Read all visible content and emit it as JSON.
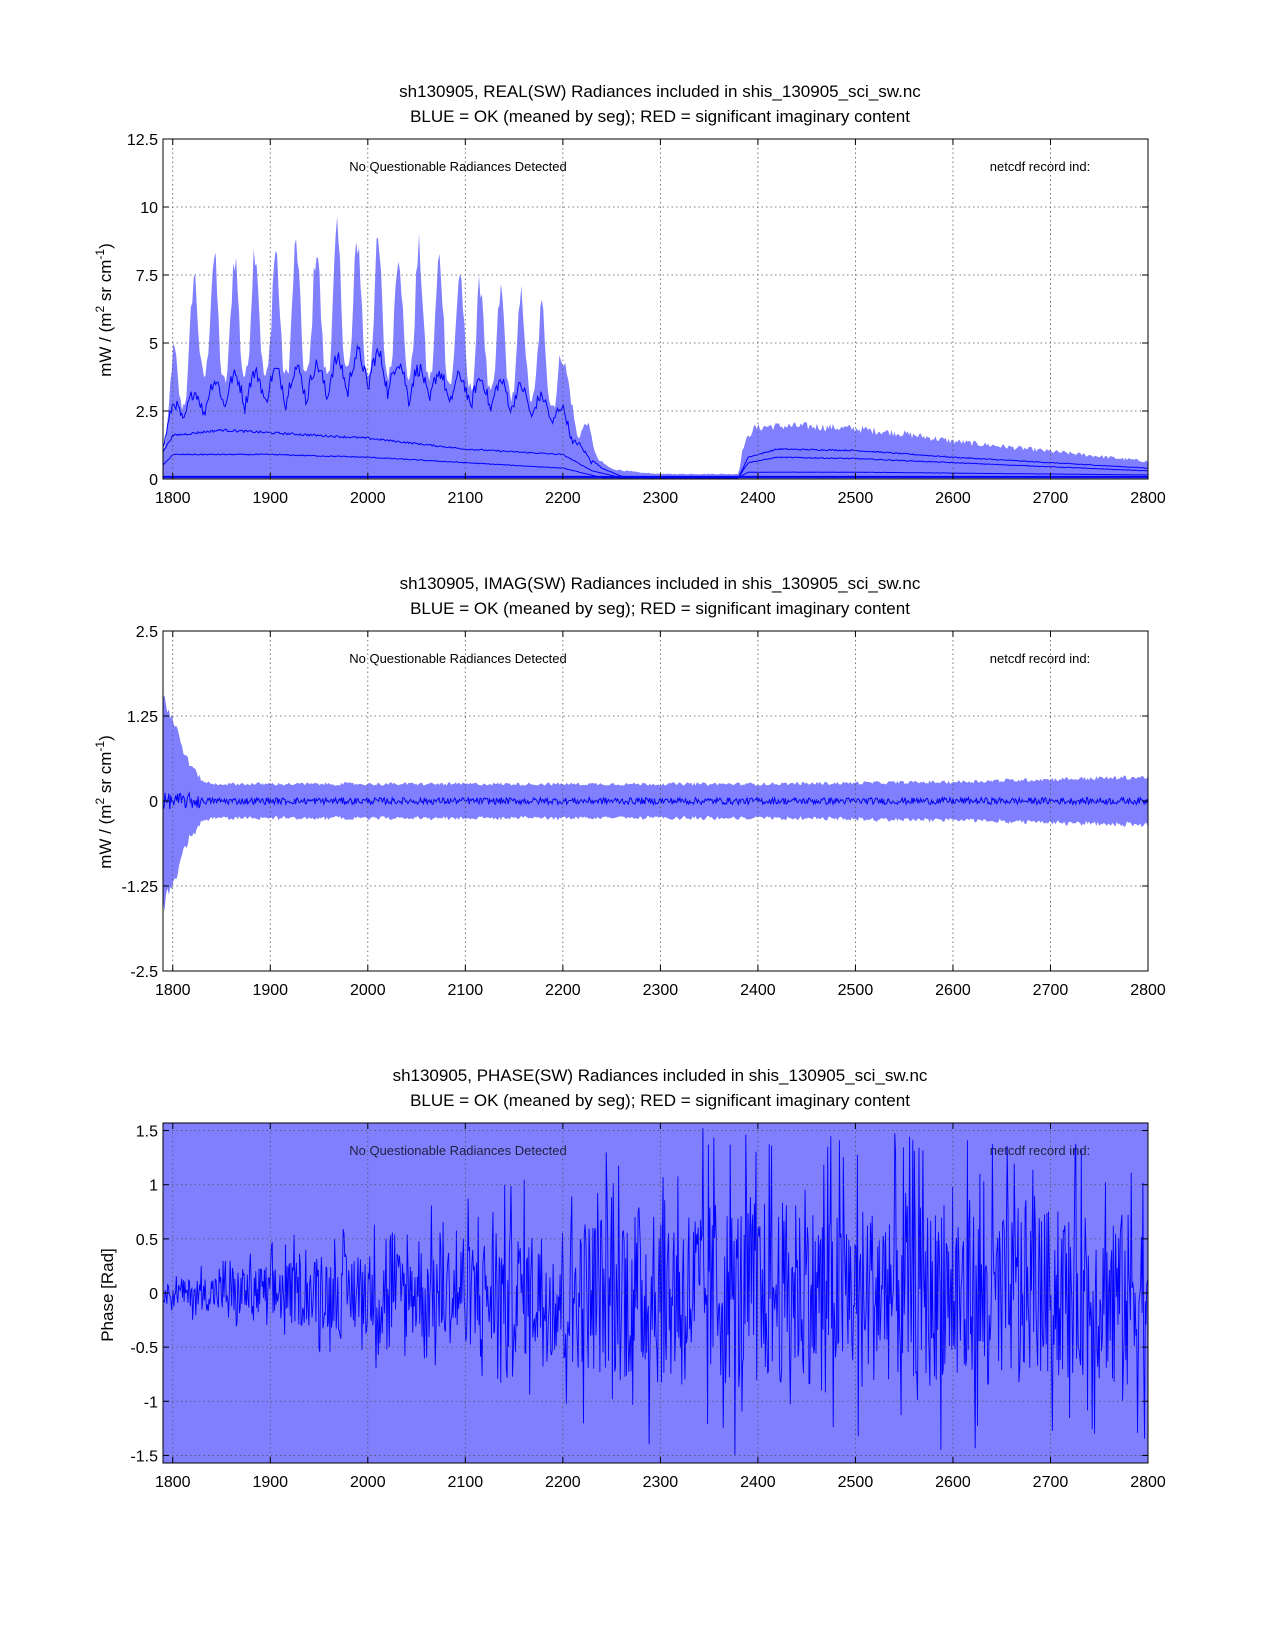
{
  "colors": {
    "envelope": "#8080ff",
    "trace": "#0000ff",
    "axis": "#000000",
    "background": "#ffffff"
  },
  "chart_data": [
    {
      "type": "line",
      "title": "sh130905, REAL(SW) Radiances included in shis_130905_sci_sw.nc",
      "subtitle": "BLUE = OK (meaned by seg); RED = significant imaginary content",
      "xlabel": "",
      "ylabel_parts": [
        "mW / (m",
        "2",
        " sr cm",
        "-1",
        ")"
      ],
      "xlim": [
        1790,
        2800
      ],
      "ylim": [
        0,
        12.5
      ],
      "xticks": [
        1800,
        1900,
        2000,
        2100,
        2200,
        2300,
        2400,
        2500,
        2600,
        2700,
        2800
      ],
      "yticks": [
        0,
        2.5,
        5,
        7.5,
        10,
        12.5
      ],
      "ytick_labels": [
        "0",
        "2.5",
        "5",
        "7.5",
        "10",
        "12.5"
      ],
      "grid": true,
      "annotation_left": "No Questionable Radiances Detected",
      "annotation_right": "netcdf record ind:",
      "series": [
        {
          "name": "envelope max",
          "x": [
            1790,
            1800,
            1830,
            1850,
            1880,
            1900,
            1930,
            1950,
            1975,
            2000,
            2030,
            2060,
            2100,
            2130,
            2160,
            2190,
            2205,
            2215,
            2225,
            2235,
            2250,
            2280,
            2300,
            2340,
            2380,
            2385,
            2395,
            2410,
            2450,
            2500,
            2550,
            2600,
            2650,
            2700,
            2750,
            2800
          ],
          "y": [
            2.5,
            5.0,
            9.2,
            8.5,
            9.3,
            9.0,
            9.3,
            9.2,
            9.8,
            9.3,
            9.2,
            9.0,
            8.1,
            7.5,
            7.2,
            6.5,
            4.0,
            1.6,
            2.3,
            0.8,
            0.4,
            0.25,
            0.2,
            0.2,
            0.2,
            1.3,
            2.0,
            2.1,
            2.1,
            2.0,
            1.8,
            1.5,
            1.3,
            1.1,
            0.9,
            0.7
          ]
        },
        {
          "name": "mean high",
          "x": [
            1790,
            1800,
            1850,
            1900,
            1950,
            2000,
            2050,
            2100,
            2150,
            2200,
            2220,
            2240,
            2260,
            2300,
            2380,
            2390,
            2420,
            2500,
            2600,
            2700,
            2800
          ],
          "y": [
            1.5,
            2.5,
            3.4,
            3.6,
            3.8,
            4.3,
            3.7,
            3.4,
            3.2,
            2.4,
            1.0,
            0.4,
            0.1,
            0.05,
            0.05,
            0.8,
            1.1,
            1.05,
            0.8,
            0.6,
            0.4
          ]
        },
        {
          "name": "mean mid",
          "x": [
            1790,
            1800,
            1850,
            1900,
            1950,
            2000,
            2100,
            2200,
            2230,
            2260,
            2380,
            2390,
            2420,
            2500,
            2600,
            2700,
            2800
          ],
          "y": [
            1.0,
            1.6,
            1.8,
            1.7,
            1.6,
            1.5,
            1.1,
            0.9,
            0.3,
            0.05,
            0.05,
            0.6,
            0.8,
            0.75,
            0.6,
            0.45,
            0.3
          ]
        },
        {
          "name": "mean low",
          "x": [
            1790,
            1800,
            1900,
            2000,
            2100,
            2200,
            2240,
            2380,
            2390,
            2500,
            2800
          ],
          "y": [
            0.5,
            0.9,
            0.9,
            0.8,
            0.6,
            0.4,
            0.05,
            0.05,
            0.25,
            0.25,
            0.15
          ]
        }
      ]
    },
    {
      "type": "line",
      "title": "sh130905, IMAG(SW) Radiances included in shis_130905_sci_sw.nc",
      "subtitle": "BLUE = OK (meaned by seg); RED = significant imaginary content",
      "xlabel": "",
      "ylabel_parts": [
        "mW / (m",
        "2",
        " sr cm",
        "-1",
        ")"
      ],
      "xlim": [
        1790,
        2800
      ],
      "ylim": [
        -2.5,
        2.5
      ],
      "xticks": [
        1800,
        1900,
        2000,
        2100,
        2200,
        2300,
        2400,
        2500,
        2600,
        2700,
        2800
      ],
      "yticks": [
        -2.5,
        -1.25,
        0,
        1.25,
        2.5
      ],
      "ytick_labels": [
        "-2.5",
        "-1.25",
        "0",
        "1.25",
        "2.5"
      ],
      "grid": true,
      "annotation_left": "No Questionable Radiances Detected",
      "annotation_right": "netcdf record ind:",
      "series": [
        {
          "name": "envelope",
          "x": [
            1790,
            1800,
            1815,
            1830,
            1840,
            1900,
            2000,
            2200,
            2400,
            2600,
            2700,
            2800
          ],
          "y": [
            1.55,
            1.2,
            0.6,
            0.3,
            0.25,
            0.25,
            0.25,
            0.25,
            0.25,
            0.28,
            0.32,
            0.35
          ]
        },
        {
          "name": "mean",
          "x": [
            1790,
            2800
          ],
          "y": [
            0.0,
            0.0
          ]
        }
      ]
    },
    {
      "type": "line",
      "title": "sh130905, PHASE(SW) Radiances included in shis_130905_sci_sw.nc",
      "subtitle": "BLUE = OK (meaned by seg); RED = significant imaginary content",
      "xlabel": "",
      "ylabel": "Phase [Rad]",
      "xlim": [
        1790,
        2800
      ],
      "ylim": [
        -1.57,
        1.57
      ],
      "xticks": [
        1800,
        1900,
        2000,
        2100,
        2200,
        2300,
        2400,
        2500,
        2600,
        2700,
        2800
      ],
      "yticks": [
        -1.5,
        -1,
        -0.5,
        0,
        0.5,
        1,
        1.5
      ],
      "ytick_labels": [
        "-1.5",
        "-1",
        "-0.5",
        "0",
        "0.5",
        "1",
        "1.5"
      ],
      "grid": true,
      "annotation_left": "No Questionable Radiances Detected",
      "annotation_right": "netcdf record ind:",
      "series": [
        {
          "name": "envelope",
          "x": [
            1790,
            2800
          ],
          "y": [
            1.57,
            1.57
          ]
        },
        {
          "name": "phase",
          "x": [
            1790,
            1850,
            1900,
            2000,
            2100,
            2200,
            2250,
            2300,
            2350,
            2400,
            2500,
            2600,
            2700,
            2800
          ],
          "y": [
            0.15,
            0.35,
            0.5,
            0.7,
            0.9,
            1.2,
            1.45,
            1.57,
            1.57,
            1.57,
            1.5,
            1.45,
            1.4,
            1.35
          ]
        }
      ]
    }
  ]
}
